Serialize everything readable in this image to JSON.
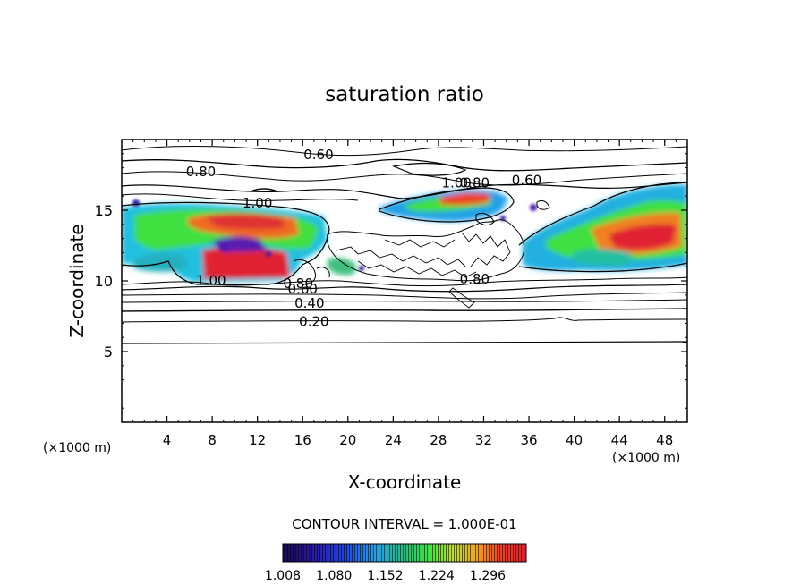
{
  "chart_data": {
    "type": "contour",
    "title": "saturation ratio",
    "xlabel": "X-coordinate",
    "ylabel": "Z-coordinate",
    "x_unit_label": "(×1000 m)",
    "y_unit_label": "(×1000 m)",
    "xlim": [
      0,
      50
    ],
    "ylim": [
      0,
      20
    ],
    "x_ticks": [
      4,
      8,
      12,
      16,
      20,
      24,
      28,
      32,
      36,
      40,
      44,
      48
    ],
    "y_ticks": [
      5,
      10,
      15
    ],
    "contour_interval_text": "CONTOUR INTERVAL = 1.000E-01",
    "contour_line_labels": [
      {
        "text": "0.60",
        "x": 17.4,
        "z": 18.6
      },
      {
        "text": "0.80",
        "x": 7.0,
        "z": 17.4
      },
      {
        "text": "1.00",
        "x": 12.0,
        "z": 15.2
      },
      {
        "text": "1.00",
        "x": 7.9,
        "z": 9.7
      },
      {
        "text": "0.80",
        "x": 15.6,
        "z": 9.5
      },
      {
        "text": "0.60",
        "x": 16.0,
        "z": 9.1
      },
      {
        "text": "0.40",
        "x": 16.6,
        "z": 8.1
      },
      {
        "text": "0.20",
        "x": 17.0,
        "z": 6.8
      },
      {
        "text": "1.00",
        "x": 29.6,
        "z": 16.6
      },
      {
        "text": "0.80",
        "x": 31.2,
        "z": 16.6
      },
      {
        "text": "0.60",
        "x": 35.8,
        "z": 16.8
      },
      {
        "text": "0.80",
        "x": 31.2,
        "z": 9.8
      }
    ],
    "colorbar": {
      "min": 1.008,
      "max": 1.35,
      "colors": [
        "#1a0a4a",
        "#2a1aa0",
        "#2040e0",
        "#20a0e8",
        "#20c080",
        "#40e040",
        "#c0e020",
        "#f0a020",
        "#f04020",
        "#e02030"
      ],
      "tick_labels": [
        "1.008",
        "1.080",
        "1.152",
        "1.224",
        "1.296"
      ]
    },
    "supersaturation_regions": [
      {
        "name": "west-cloud",
        "x": [
          0,
          21
        ],
        "z": [
          10,
          15.5
        ],
        "peak": 1.3
      },
      {
        "name": "upper-middle-cloud",
        "x": [
          22.5,
          32
        ],
        "z": [
          14.5,
          17
        ],
        "peak": 1.25
      },
      {
        "name": "east-cloud",
        "x": [
          35,
          50
        ],
        "z": [
          10.5,
          17.5
        ],
        "peak": 1.3
      }
    ]
  }
}
